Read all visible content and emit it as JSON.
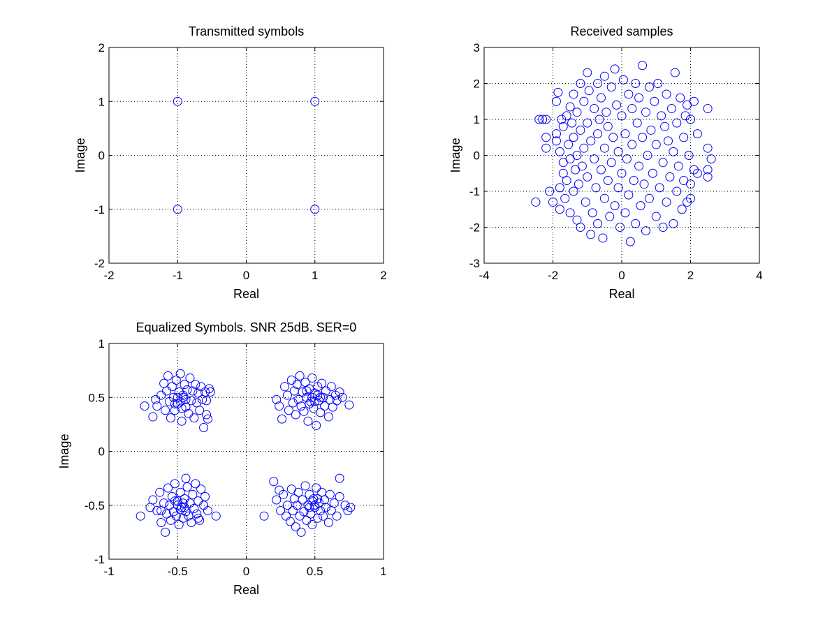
{
  "chart_data": [
    {
      "type": "scatter",
      "title": "Transmitted symbols",
      "xlabel": "Real",
      "ylabel": "Image",
      "xlim": [
        -2,
        2
      ],
      "ylim": [
        -2,
        2
      ],
      "xticks": [
        -2,
        -1,
        0,
        1,
        2
      ],
      "yticks": [
        -2,
        -1,
        0,
        1,
        2
      ],
      "xtick_labels": [
        "-2",
        "-1",
        "0",
        "1",
        "2"
      ],
      "ytick_labels": [
        "-2",
        "-1",
        "0",
        "1",
        "2"
      ],
      "grid": true,
      "marker": "o",
      "color": "#0000ff",
      "points": [
        [
          -1,
          1
        ],
        [
          1,
          1
        ],
        [
          -1,
          -1
        ],
        [
          1,
          -1
        ]
      ]
    },
    {
      "type": "scatter",
      "title": "Received samples",
      "xlabel": "Real",
      "ylabel": "Image",
      "xlim": [
        -4,
        4
      ],
      "ylim": [
        -3,
        3
      ],
      "xticks": [
        -4,
        -2,
        0,
        2,
        4
      ],
      "yticks": [
        -3,
        -2,
        -1,
        0,
        1,
        2,
        3
      ],
      "xtick_labels": [
        "-4",
        "-2",
        "0",
        "2",
        "4"
      ],
      "ytick_labels": [
        "-3",
        "-2",
        "-1",
        "0",
        "1",
        "2",
        "3"
      ],
      "grid": true,
      "marker": "o",
      "color": "#0000ff",
      "points": [
        [
          -2.4,
          1.0
        ],
        [
          -2.3,
          1.0
        ],
        [
          -2.2,
          1.0
        ],
        [
          -2.2,
          0.2
        ],
        [
          -2.2,
          0.5
        ],
        [
          -2.1,
          -1.0
        ],
        [
          -2.0,
          -1.3
        ],
        [
          -2.5,
          -1.3
        ],
        [
          -1.9,
          0.4
        ],
        [
          -1.9,
          0.6
        ],
        [
          -1.9,
          1.5
        ],
        [
          -1.85,
          1.75
        ],
        [
          -1.8,
          -0.9
        ],
        [
          -1.8,
          -1.5
        ],
        [
          -1.8,
          0.1
        ],
        [
          -1.75,
          1.0
        ],
        [
          -1.7,
          -0.2
        ],
        [
          -1.7,
          -0.5
        ],
        [
          -1.7,
          0.8
        ],
        [
          -1.65,
          -1.2
        ],
        [
          -1.6,
          1.1
        ],
        [
          -1.6,
          -0.7
        ],
        [
          -1.55,
          0.3
        ],
        [
          -1.5,
          1.35
        ],
        [
          -1.5,
          -1.6
        ],
        [
          -1.5,
          -0.1
        ],
        [
          -1.45,
          0.9
        ],
        [
          -1.4,
          0.5
        ],
        [
          -1.4,
          -1.0
        ],
        [
          -1.4,
          1.7
        ],
        [
          -1.35,
          -0.4
        ],
        [
          -1.3,
          0.0
        ],
        [
          -1.3,
          1.2
        ],
        [
          -1.3,
          -1.8
        ],
        [
          -1.25,
          -0.8
        ],
        [
          -1.2,
          0.7
        ],
        [
          -1.2,
          2.0
        ],
        [
          -1.2,
          -2.0
        ],
        [
          -1.15,
          -0.3
        ],
        [
          -1.1,
          1.5
        ],
        [
          -1.1,
          0.2
        ],
        [
          -1.05,
          -1.3
        ],
        [
          -1.0,
          0.9
        ],
        [
          -1.0,
          -0.6
        ],
        [
          -1.0,
          2.3
        ],
        [
          -0.95,
          1.8
        ],
        [
          -0.9,
          -2.2
        ],
        [
          -0.9,
          0.4
        ],
        [
          -0.85,
          -1.6
        ],
        [
          -0.8,
          1.3
        ],
        [
          -0.8,
          -0.1
        ],
        [
          -0.75,
          -0.9
        ],
        [
          -0.7,
          2.0
        ],
        [
          -0.7,
          0.6
        ],
        [
          -0.7,
          -1.9
        ],
        [
          -0.65,
          1.0
        ],
        [
          -0.6,
          -0.4
        ],
        [
          -0.6,
          1.6
        ],
        [
          -0.55,
          -2.3
        ],
        [
          -0.5,
          0.2
        ],
        [
          -0.5,
          -1.2
        ],
        [
          -0.5,
          2.2
        ],
        [
          -0.45,
          1.2
        ],
        [
          -0.4,
          -0.7
        ],
        [
          -0.4,
          0.8
        ],
        [
          -0.35,
          -1.7
        ],
        [
          -0.3,
          1.9
        ],
        [
          -0.3,
          -0.2
        ],
        [
          -0.25,
          0.5
        ],
        [
          -0.2,
          -1.4
        ],
        [
          -0.2,
          2.4
        ],
        [
          -0.15,
          1.4
        ],
        [
          -0.1,
          -0.9
        ],
        [
          -0.1,
          0.1
        ],
        [
          -0.05,
          -2.0
        ],
        [
          0.0,
          1.1
        ],
        [
          0.0,
          -0.5
        ],
        [
          0.05,
          2.1
        ],
        [
          0.1,
          0.6
        ],
        [
          0.1,
          -1.6
        ],
        [
          0.15,
          -0.1
        ],
        [
          0.2,
          1.7
        ],
        [
          0.2,
          -1.1
        ],
        [
          0.25,
          -2.4
        ],
        [
          0.3,
          0.3
        ],
        [
          0.3,
          1.3
        ],
        [
          0.35,
          -0.7
        ],
        [
          0.4,
          2.0
        ],
        [
          0.4,
          -1.9
        ],
        [
          0.45,
          0.9
        ],
        [
          0.5,
          -0.3
        ],
        [
          0.5,
          1.6
        ],
        [
          0.55,
          -1.4
        ],
        [
          0.6,
          0.5
        ],
        [
          0.6,
          2.5
        ],
        [
          0.65,
          -0.8
        ],
        [
          0.7,
          1.2
        ],
        [
          0.7,
          -2.1
        ],
        [
          0.75,
          0.0
        ],
        [
          0.8,
          1.9
        ],
        [
          0.8,
          -1.2
        ],
        [
          0.85,
          0.7
        ],
        [
          0.9,
          -0.5
        ],
        [
          0.95,
          1.5
        ],
        [
          1.0,
          -1.7
        ],
        [
          1.0,
          0.3
        ],
        [
          1.05,
          2.0
        ],
        [
          1.1,
          -0.9
        ],
        [
          1.15,
          1.1
        ],
        [
          1.2,
          -0.2
        ],
        [
          1.2,
          -2.0
        ],
        [
          1.25,
          0.8
        ],
        [
          1.3,
          1.7
        ],
        [
          1.3,
          -1.3
        ],
        [
          1.35,
          0.4
        ],
        [
          1.4,
          -0.6
        ],
        [
          1.45,
          1.3
        ],
        [
          1.5,
          -1.9
        ],
        [
          1.5,
          0.1
        ],
        [
          1.55,
          2.3
        ],
        [
          1.6,
          -1.0
        ],
        [
          1.6,
          0.9
        ],
        [
          1.65,
          -0.3
        ],
        [
          1.7,
          1.6
        ],
        [
          1.75,
          -1.5
        ],
        [
          1.8,
          0.5
        ],
        [
          1.8,
          -0.7
        ],
        [
          1.85,
          1.1
        ],
        [
          1.9,
          -1.3
        ],
        [
          1.9,
          1.4
        ],
        [
          1.95,
          0.0
        ],
        [
          2.0,
          -0.8
        ],
        [
          2.0,
          1.0
        ],
        [
          2.0,
          -1.2
        ],
        [
          2.1,
          1.5
        ],
        [
          2.1,
          -0.4
        ],
        [
          2.2,
          0.6
        ],
        [
          2.2,
          -0.5
        ],
        [
          2.5,
          1.3
        ],
        [
          2.5,
          0.2
        ],
        [
          2.6,
          -0.1
        ],
        [
          2.5,
          -0.6
        ],
        [
          2.5,
          -0.4
        ]
      ]
    },
    {
      "type": "scatter",
      "title": "Equalized Symbols. SNR 25dB. SER=0",
      "xlabel": "Real",
      "ylabel": "Image",
      "xlim": [
        -1,
        1
      ],
      "ylim": [
        -1,
        1
      ],
      "xticks": [
        -1,
        -0.5,
        0,
        0.5,
        1
      ],
      "yticks": [
        -1,
        -0.5,
        0,
        0.5,
        1
      ],
      "xtick_labels": [
        "-1",
        "-0.5",
        "0",
        "0.5",
        "1"
      ],
      "ytick_labels": [
        "-1",
        "-0.5",
        "0",
        "0.5",
        "1"
      ],
      "grid": true,
      "marker": "o",
      "color": "#0000ff",
      "points": [
        [
          -0.74,
          0.42
        ],
        [
          -0.66,
          0.48
        ],
        [
          -0.65,
          0.42
        ],
        [
          -0.62,
          0.52
        ],
        [
          -0.6,
          0.63
        ],
        [
          -0.59,
          0.38
        ],
        [
          -0.58,
          0.56
        ],
        [
          -0.57,
          0.7
        ],
        [
          -0.56,
          0.46
        ],
        [
          -0.55,
          0.31
        ],
        [
          -0.54,
          0.6
        ],
        [
          -0.53,
          0.5
        ],
        [
          -0.52,
          0.38
        ],
        [
          -0.51,
          0.66
        ],
        [
          -0.5,
          0.44
        ],
        [
          -0.49,
          0.55
        ],
        [
          -0.48,
          0.72
        ],
        [
          -0.47,
          0.28
        ],
        [
          -0.46,
          0.5
        ],
        [
          -0.45,
          0.62
        ],
        [
          -0.44,
          0.41
        ],
        [
          -0.43,
          0.57
        ],
        [
          -0.42,
          0.35
        ],
        [
          -0.41,
          0.68
        ],
        [
          -0.4,
          0.47
        ],
        [
          -0.39,
          0.56
        ],
        [
          -0.38,
          0.31
        ],
        [
          -0.37,
          0.62
        ],
        [
          -0.36,
          0.45
        ],
        [
          -0.35,
          0.54
        ],
        [
          -0.34,
          0.38
        ],
        [
          -0.33,
          0.6
        ],
        [
          -0.32,
          0.48
        ],
        [
          -0.31,
          0.22
        ],
        [
          -0.3,
          0.55
        ],
        [
          -0.29,
          0.34
        ],
        [
          -0.28,
          0.3
        ],
        [
          -0.27,
          0.58
        ],
        [
          -0.26,
          0.55
        ],
        [
          -0.48,
          0.46
        ],
        [
          -0.46,
          0.52
        ],
        [
          -0.5,
          0.5
        ],
        [
          -0.44,
          0.48
        ],
        [
          -0.52,
          0.44
        ],
        [
          -0.47,
          0.4
        ],
        [
          -0.29,
          0.47
        ],
        [
          -0.68,
          0.32
        ],
        [
          0.22,
          0.48
        ],
        [
          0.24,
          0.42
        ],
        [
          0.26,
          0.3
        ],
        [
          0.28,
          0.6
        ],
        [
          0.3,
          0.52
        ],
        [
          0.31,
          0.38
        ],
        [
          0.33,
          0.66
        ],
        [
          0.34,
          0.45
        ],
        [
          0.35,
          0.56
        ],
        [
          0.36,
          0.34
        ],
        [
          0.37,
          0.62
        ],
        [
          0.38,
          0.48
        ],
        [
          0.39,
          0.7
        ],
        [
          0.4,
          0.42
        ],
        [
          0.41,
          0.55
        ],
        [
          0.42,
          0.37
        ],
        [
          0.43,
          0.64
        ],
        [
          0.44,
          0.5
        ],
        [
          0.45,
          0.28
        ],
        [
          0.46,
          0.58
        ],
        [
          0.47,
          0.46
        ],
        [
          0.48,
          0.68
        ],
        [
          0.49,
          0.4
        ],
        [
          0.5,
          0.54
        ],
        [
          0.51,
          0.24
        ],
        [
          0.52,
          0.6
        ],
        [
          0.53,
          0.47
        ],
        [
          0.54,
          0.36
        ],
        [
          0.55,
          0.63
        ],
        [
          0.56,
          0.5
        ],
        [
          0.57,
          0.42
        ],
        [
          0.58,
          0.56
        ],
        [
          0.6,
          0.32
        ],
        [
          0.61,
          0.48
        ],
        [
          0.62,
          0.6
        ],
        [
          0.63,
          0.41
        ],
        [
          0.65,
          0.52
        ],
        [
          0.66,
          0.47
        ],
        [
          0.68,
          0.55
        ],
        [
          0.7,
          0.5
        ],
        [
          0.75,
          0.43
        ],
        [
          0.48,
          0.5
        ],
        [
          0.5,
          0.46
        ],
        [
          0.52,
          0.52
        ],
        [
          0.46,
          0.44
        ],
        [
          0.54,
          0.5
        ],
        [
          0.44,
          0.56
        ],
        [
          -0.77,
          -0.6
        ],
        [
          -0.7,
          -0.52
        ],
        [
          -0.68,
          -0.45
        ],
        [
          -0.65,
          -0.55
        ],
        [
          -0.63,
          -0.38
        ],
        [
          -0.62,
          -0.66
        ],
        [
          -0.6,
          -0.48
        ],
        [
          -0.59,
          -0.75
        ],
        [
          -0.58,
          -0.58
        ],
        [
          -0.57,
          -0.34
        ],
        [
          -0.56,
          -0.5
        ],
        [
          -0.55,
          -0.64
        ],
        [
          -0.54,
          -0.42
        ],
        [
          -0.53,
          -0.56
        ],
        [
          -0.52,
          -0.3
        ],
        [
          -0.51,
          -0.6
        ],
        [
          -0.5,
          -0.46
        ],
        [
          -0.49,
          -0.68
        ],
        [
          -0.48,
          -0.38
        ],
        [
          -0.47,
          -0.52
        ],
        [
          -0.46,
          -0.62
        ],
        [
          -0.45,
          -0.44
        ],
        [
          -0.44,
          -0.56
        ],
        [
          -0.43,
          -0.33
        ],
        [
          -0.42,
          -0.6
        ],
        [
          -0.41,
          -0.48
        ],
        [
          -0.4,
          -0.66
        ],
        [
          -0.39,
          -0.4
        ],
        [
          -0.38,
          -0.53
        ],
        [
          -0.37,
          -0.3
        ],
        [
          -0.36,
          -0.58
        ],
        [
          -0.35,
          -0.46
        ],
        [
          -0.34,
          -0.64
        ],
        [
          -0.33,
          -0.35
        ],
        [
          -0.31,
          -0.5
        ],
        [
          -0.3,
          -0.42
        ],
        [
          -0.28,
          -0.55
        ],
        [
          -0.44,
          -0.25
        ],
        [
          -0.22,
          -0.6
        ],
        [
          -0.5,
          -0.5
        ],
        [
          -0.48,
          -0.54
        ],
        [
          -0.46,
          -0.48
        ],
        [
          -0.52,
          -0.46
        ],
        [
          -0.45,
          -0.52
        ],
        [
          -0.62,
          -0.55
        ],
        [
          -0.35,
          -0.62
        ],
        [
          0.13,
          -0.6
        ],
        [
          0.22,
          -0.45
        ],
        [
          0.24,
          -0.36
        ],
        [
          0.25,
          -0.55
        ],
        [
          0.27,
          -0.4
        ],
        [
          0.29,
          -0.6
        ],
        [
          0.3,
          -0.5
        ],
        [
          0.32,
          -0.65
        ],
        [
          0.33,
          -0.35
        ],
        [
          0.34,
          -0.55
        ],
        [
          0.35,
          -0.44
        ],
        [
          0.36,
          -0.7
        ],
        [
          0.37,
          -0.5
        ],
        [
          0.38,
          -0.38
        ],
        [
          0.39,
          -0.6
        ],
        [
          0.4,
          -0.75
        ],
        [
          0.41,
          -0.45
        ],
        [
          0.42,
          -0.56
        ],
        [
          0.43,
          -0.32
        ],
        [
          0.44,
          -0.64
        ],
        [
          0.45,
          -0.5
        ],
        [
          0.46,
          -0.4
        ],
        [
          0.47,
          -0.58
        ],
        [
          0.48,
          -0.68
        ],
        [
          0.49,
          -0.44
        ],
        [
          0.5,
          -0.52
        ],
        [
          0.51,
          -0.34
        ],
        [
          0.52,
          -0.62
        ],
        [
          0.53,
          -0.48
        ],
        [
          0.54,
          -0.55
        ],
        [
          0.55,
          -0.38
        ],
        [
          0.56,
          -0.6
        ],
        [
          0.57,
          -0.45
        ],
        [
          0.58,
          -0.52
        ],
        [
          0.6,
          -0.66
        ],
        [
          0.61,
          -0.4
        ],
        [
          0.62,
          -0.55
        ],
        [
          0.64,
          -0.48
        ],
        [
          0.66,
          -0.6
        ],
        [
          0.68,
          -0.42
        ],
        [
          0.68,
          -0.25
        ],
        [
          0.72,
          -0.5
        ],
        [
          0.74,
          -0.55
        ],
        [
          0.76,
          -0.52
        ],
        [
          0.5,
          -0.5
        ],
        [
          0.48,
          -0.46
        ],
        [
          0.46,
          -0.52
        ],
        [
          0.52,
          -0.44
        ],
        [
          0.2,
          -0.28
        ]
      ]
    }
  ]
}
